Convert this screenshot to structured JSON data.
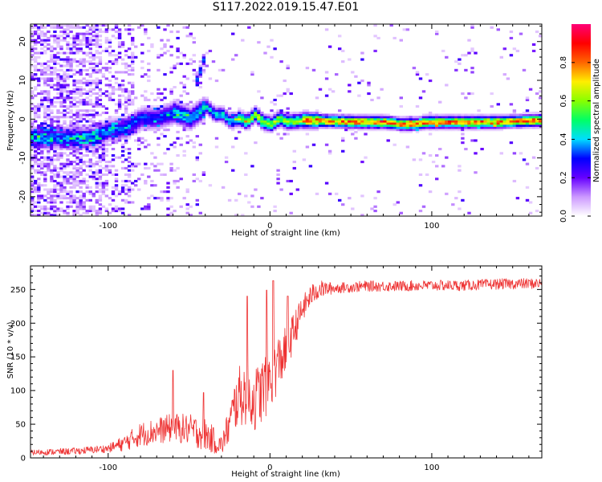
{
  "figure": {
    "title": "S117.2022.019.15.47.E01"
  },
  "chart_data": [
    {
      "type": "heatmap",
      "title": "S117.2022.019.15.47.E01",
      "xlabel": "Height of straight line (km)",
      "ylabel": "Frequency (Hz)",
      "xlim": [
        -148,
        168
      ],
      "ylim": [
        -25,
        24.5
      ],
      "xticks": [
        -100,
        0,
        100
      ],
      "xtick_labels": [
        "-100",
        "0",
        "100"
      ],
      "yticks": [
        -20,
        -10,
        0,
        10,
        20
      ],
      "ytick_labels": [
        "-20",
        "-10",
        "0",
        "10",
        "20"
      ],
      "colorbar": {
        "label": "Normalized spectral amplitude",
        "range": [
          0,
          1
        ],
        "ticks": [
          0.0,
          0.2,
          0.4,
          0.6,
          0.8
        ],
        "tick_labels": [
          "0.0",
          "0.2",
          "0.4",
          "0.6",
          "0.8"
        ],
        "colors": [
          "#ffffff",
          "#cc99ff",
          "#6600ff",
          "#0000ff",
          "#00ddff",
          "#00ff66",
          "#88ff00",
          "#ffee00",
          "#ff6600",
          "#ff0000",
          "#ff0077"
        ]
      },
      "ridge": {
        "x": [
          -110,
          -100,
          -90,
          -80,
          -70,
          -60,
          -50,
          -40,
          -35,
          -30,
          -25,
          -20,
          -15,
          -10,
          -5,
          0,
          5,
          10,
          20,
          40,
          60,
          70,
          80,
          90,
          95,
          100,
          120,
          140,
          167
        ],
        "frequency": [
          -5,
          -3,
          -2.5,
          0,
          0,
          1.5,
          0,
          3,
          1,
          1,
          -1,
          0,
          -1,
          1,
          -1,
          -1.5,
          0,
          -1,
          -0.5,
          -0.8,
          -1,
          -1,
          -1.5,
          -1.5,
          -1,
          -1,
          -1,
          -1,
          -0.5
        ]
      },
      "secondary_feature": {
        "x": [
          -45,
          -44,
          -43,
          -42
        ],
        "frequency": [
          10,
          12,
          14.5,
          15
        ]
      },
      "grid": false,
      "legend": "none"
    },
    {
      "type": "line",
      "xlabel": "Height of straight line (km)",
      "ylabel": "SNR (10 * v/v)",
      "xlim": [
        -148,
        168
      ],
      "ylim": [
        0,
        285
      ],
      "xticks": [
        -100,
        0,
        100
      ],
      "xtick_labels": [
        "-100",
        "0",
        "100"
      ],
      "yticks": [
        0,
        50,
        100,
        150,
        200,
        250
      ],
      "ytick_labels": [
        "0",
        "50",
        "100",
        "150",
        "200",
        "250"
      ],
      "series": [
        {
          "color": "#ee3333",
          "trend": {
            "x": [
              -148,
              -120,
              -100,
              -90,
              -80,
              -70,
              -60,
              -50,
              -40,
              -30,
              -25,
              -20,
              -15,
              -10,
              -5,
              0,
              5,
              10,
              15,
              20,
              25,
              30,
              40,
              60,
              80,
              100,
              120,
              140,
              168
            ],
            "y": [
              8,
              10,
              14,
              22,
              35,
              40,
              45,
              42,
              35,
              18,
              50,
              90,
              95,
              85,
              100,
              120,
              140,
              160,
              190,
              220,
              240,
              250,
              252,
              255,
              255,
              256,
              256,
              258,
              259
            ]
          },
          "noise_amplitude": {
            "x": [
              -148,
              -100,
              -80,
              -40,
              -30,
              -20,
              0,
              10,
              20,
              40,
              168
            ],
            "y": [
              4,
              6,
              18,
              25,
              15,
              45,
              50,
              35,
              20,
              8,
              8
            ]
          },
          "peaks": [
            {
              "x": -60,
              "y": 130
            },
            {
              "x": -41,
              "y": 97
            },
            {
              "x": -14,
              "y": 240
            },
            {
              "x": -2,
              "y": 249
            },
            {
              "x": 2,
              "y": 263
            },
            {
              "x": 11,
              "y": 240
            }
          ]
        }
      ],
      "grid": false,
      "legend": "none"
    }
  ]
}
